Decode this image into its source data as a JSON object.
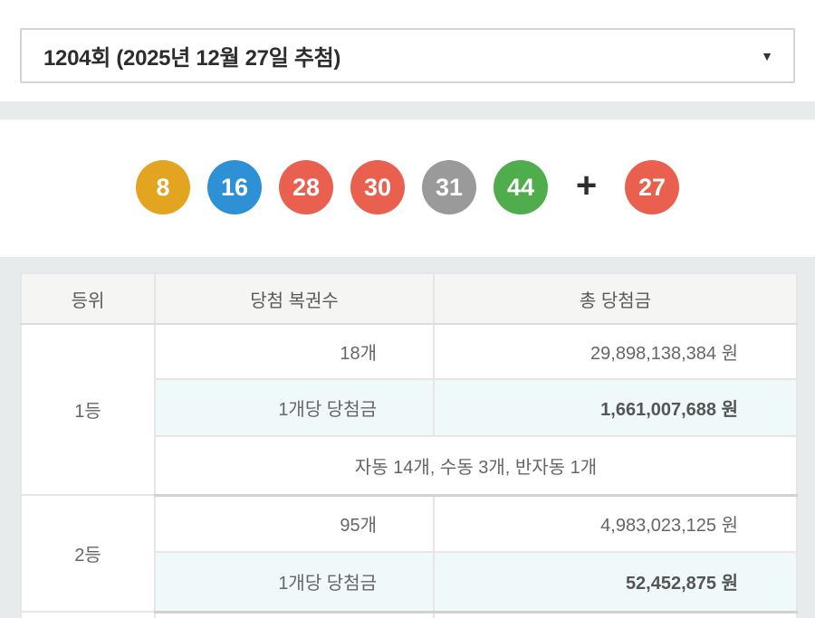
{
  "header": {
    "title": "1204회 (2025년 12월 27일 추첨)",
    "dropdown_icon": "▼"
  },
  "draw": {
    "numbers": [
      {
        "value": "8",
        "color": "#e3a41f"
      },
      {
        "value": "16",
        "color": "#2e90d5"
      },
      {
        "value": "28",
        "color": "#e9604f"
      },
      {
        "value": "30",
        "color": "#e9604f"
      },
      {
        "value": "31",
        "color": "#9a9a9a"
      },
      {
        "value": "44",
        "color": "#4fae4b"
      }
    ],
    "plus_label": "+",
    "bonus": {
      "value": "27",
      "color": "#e9604f"
    }
  },
  "table": {
    "headers": [
      "등위",
      "당첨 복권수",
      "총 당첨금"
    ],
    "sections": [
      {
        "rank": "1등",
        "rows": [
          {
            "count": "18개",
            "amount": "29,898,138,384 원"
          },
          {
            "count": "1개당 당첨금",
            "amount": "1,661,007,688 원"
          }
        ],
        "note": "자동 14개, 수동 3개, 반자동 1개"
      },
      {
        "rank": "2등",
        "rows": [
          {
            "count": "95개",
            "amount": "4,983,023,125 원"
          },
          {
            "count": "1개당 당첨금",
            "amount": "52,452,875 원"
          }
        ]
      }
    ]
  },
  "colors": {
    "page_band": "#e8ebeb",
    "highlight_row": "#eff9fa",
    "header_cell": "#f5f5f3",
    "ball_yellow": "#e3a41f",
    "ball_blue": "#2e90d5",
    "ball_red": "#e9604f",
    "ball_gray": "#9a9a9a",
    "ball_green": "#4fae4b"
  }
}
